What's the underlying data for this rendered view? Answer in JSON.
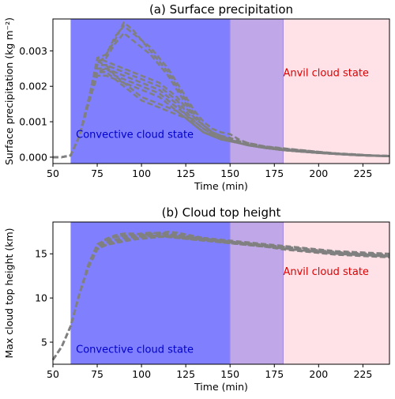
{
  "chart_data": [
    {
      "type": "line",
      "title": "(a) Surface precipitation",
      "xlabel": "Time (min)",
      "ylabel": "Surface precipitation (kg m⁻²)",
      "xlim": [
        50,
        240
      ],
      "ylim": [
        -0.00018,
        0.0039
      ],
      "xticks": [
        50,
        75,
        100,
        125,
        150,
        175,
        200,
        225
      ],
      "xtick_labels": [
        "50",
        "75",
        "100",
        "125",
        "150",
        "175",
        "200",
        "225"
      ],
      "yticks": [
        0,
        0.001,
        0.002,
        0.003
      ],
      "ytick_labels": [
        "0.000",
        "0.001",
        "0.002",
        "0.003"
      ],
      "grid": false,
      "line_color": "#808080",
      "line_style": "dashed",
      "regions": [
        {
          "x": [
            60,
            150
          ],
          "color": "#8080ff"
        },
        {
          "x": [
            150,
            180
          ],
          "color": "#c0a8e8"
        },
        {
          "x": [
            180,
            240
          ],
          "color": "#ffe2e8"
        }
      ],
      "annotations": [
        {
          "text": "Convective cloud state",
          "x": 63,
          "y": 0.00055,
          "color": "#0000cc"
        },
        {
          "text": "Anvil cloud state",
          "x": 180,
          "y": 0.00228,
          "color": "#dd0000"
        }
      ],
      "x": [
        50,
        55,
        60,
        65,
        70,
        75,
        80,
        85,
        90,
        95,
        100,
        105,
        110,
        115,
        120,
        125,
        130,
        135,
        140,
        145,
        150,
        155,
        160,
        165,
        170,
        175,
        180,
        190,
        200,
        210,
        220,
        230,
        240
      ],
      "series": [
        {
          "values": [
            0,
            0,
            5e-05,
            0.0006,
            0.0016,
            0.0028,
            0.0029,
            0.0034,
            0.0037,
            0.0035,
            0.0033,
            0.0031,
            0.0028,
            0.0025,
            0.0021,
            0.0017,
            0.0013,
            0.001,
            0.0008,
            0.0007,
            0.00065,
            0.0005,
            0.0004,
            0.00035,
            0.0003,
            0.00028,
            0.00025,
            0.0002,
            0.00015,
            0.0001,
            8e-05,
            5e-05,
            4e-05
          ]
        },
        {
          "values": [
            0,
            0,
            5e-05,
            0.0006,
            0.0015,
            0.0026,
            0.0029,
            0.0033,
            0.0038,
            0.0036,
            0.0033,
            0.003,
            0.0027,
            0.0024,
            0.002,
            0.0016,
            0.0012,
            0.0009,
            0.0007,
            0.0006,
            0.0005,
            0.0004,
            0.00035,
            0.0003,
            0.00028,
            0.00025,
            0.00022,
            0.00018,
            0.00014,
            0.0001,
            7e-05,
            5e-05,
            3e-05
          ]
        },
        {
          "values": [
            0,
            0,
            5e-05,
            0.0006,
            0.0016,
            0.0027,
            0.0028,
            0.0032,
            0.0035,
            0.0033,
            0.0031,
            0.0029,
            0.0026,
            0.0023,
            0.0019,
            0.0015,
            0.0011,
            0.0009,
            0.0007,
            0.0006,
            0.00055,
            0.00045,
            0.0004,
            0.00035,
            0.0003,
            0.00027,
            0.00024,
            0.0002,
            0.00015,
            0.00011,
            8e-05,
            5e-05,
            3e-05
          ]
        },
        {
          "values": [
            0,
            0,
            5e-05,
            0.0006,
            0.0015,
            0.0028,
            0.0027,
            0.0026,
            0.0025,
            0.0024,
            0.0023,
            0.0022,
            0.0021,
            0.0019,
            0.0017,
            0.0014,
            0.0011,
            0.0009,
            0.0007,
            0.0006,
            0.0005,
            0.0004,
            0.00035,
            0.0003,
            0.00027,
            0.00024,
            0.00022,
            0.00018,
            0.00014,
            0.0001,
            7e-05,
            5e-05,
            3e-05
          ]
        },
        {
          "values": [
            0,
            0,
            5e-05,
            0.0006,
            0.0016,
            0.0026,
            0.0026,
            0.0025,
            0.0024,
            0.0023,
            0.0022,
            0.0021,
            0.002,
            0.0018,
            0.0016,
            0.0013,
            0.001,
            0.0008,
            0.00065,
            0.00055,
            0.0005,
            0.00042,
            0.00036,
            0.0003,
            0.00026,
            0.00023,
            0.0002,
            0.00016,
            0.00012,
            9e-05,
            6e-05,
            4e-05,
            3e-05
          ]
        },
        {
          "values": [
            0,
            0,
            5e-05,
            0.0006,
            0.0015,
            0.0025,
            0.0025,
            0.0024,
            0.0023,
            0.0022,
            0.0021,
            0.002,
            0.0019,
            0.0017,
            0.0015,
            0.0012,
            0.001,
            0.0008,
            0.00065,
            0.00055,
            0.00048,
            0.0004,
            0.00034,
            0.0003,
            0.00026,
            0.00023,
            0.0002,
            0.00016,
            0.00012,
            9e-05,
            6e-05,
            4e-05,
            3e-05
          ]
        },
        {
          "values": [
            0,
            0,
            5e-05,
            0.0006,
            0.0016,
            0.0024,
            0.0025,
            0.0023,
            0.0022,
            0.0021,
            0.002,
            0.0019,
            0.0018,
            0.0016,
            0.0014,
            0.0012,
            0.0009,
            0.0007,
            0.0006,
            0.0005,
            0.00045,
            0.0004,
            0.00034,
            0.0003,
            0.00026,
            0.00023,
            0.0002,
            0.00016,
            0.00012,
            9e-05,
            6e-05,
            4e-05,
            3e-05
          ]
        },
        {
          "values": [
            0,
            0,
            5e-05,
            0.0006,
            0.0015,
            0.0023,
            0.0023,
            0.0022,
            0.0021,
            0.002,
            0.0019,
            0.0018,
            0.0017,
            0.0015,
            0.0013,
            0.0011,
            0.0009,
            0.0007,
            0.0006,
            0.0005,
            0.00045,
            0.0004,
            0.00034,
            0.0003,
            0.00026,
            0.00023,
            0.0002,
            0.00016,
            0.00012,
            9e-05,
            6e-05,
            4e-05,
            3e-05
          ]
        },
        {
          "values": [
            0,
            0,
            5e-05,
            0.0006,
            0.0016,
            0.0027,
            0.0026,
            0.0023,
            0.0021,
            0.0019,
            0.0017,
            0.0016,
            0.0015,
            0.0014,
            0.0013,
            0.0011,
            0.0009,
            0.0007,
            0.0006,
            0.0005,
            0.00045,
            0.0004,
            0.00034,
            0.0003,
            0.00026,
            0.00023,
            0.0002,
            0.00016,
            0.00012,
            9e-05,
            6e-05,
            4e-05,
            3e-05
          ]
        },
        {
          "values": [
            0,
            0,
            5e-05,
            0.0006,
            0.0015,
            0.0024,
            0.0024,
            0.0022,
            0.002,
            0.0018,
            0.0016,
            0.0015,
            0.0014,
            0.0013,
            0.0012,
            0.0011,
            0.0009,
            0.0007,
            0.0006,
            0.0005,
            0.00045,
            0.0004,
            0.00034,
            0.0003,
            0.00026,
            0.00023,
            0.0002,
            0.00016,
            0.00012,
            9e-05,
            6e-05,
            4e-05,
            3e-05
          ]
        }
      ]
    },
    {
      "type": "line",
      "title": "(b) Cloud top height",
      "xlabel": "Time (min)",
      "ylabel": "Max cloud top height (km)",
      "xlim": [
        50,
        240
      ],
      "ylim": [
        2.5,
        18.6
      ],
      "xticks": [
        50,
        75,
        100,
        125,
        150,
        175,
        200,
        225
      ],
      "xtick_labels": [
        "50",
        "75",
        "100",
        "125",
        "150",
        "175",
        "200",
        "225"
      ],
      "yticks": [
        5,
        10,
        15
      ],
      "ytick_labels": [
        "5",
        "10",
        "15"
      ],
      "grid": false,
      "line_color": "#808080",
      "line_style": "dashed",
      "regions": [
        {
          "x": [
            60,
            150
          ],
          "color": "#8080ff"
        },
        {
          "x": [
            150,
            180
          ],
          "color": "#c0a8e8"
        },
        {
          "x": [
            180,
            240
          ],
          "color": "#ffe2e8"
        }
      ],
      "annotations": [
        {
          "text": "Convective cloud state",
          "x": 63,
          "y": 3.8,
          "color": "#0000cc"
        },
        {
          "text": "Anvil cloud state",
          "x": 180,
          "y": 12.6,
          "color": "#dd0000"
        }
      ],
      "x": [
        50,
        55,
        60,
        65,
        70,
        75,
        80,
        85,
        90,
        95,
        100,
        105,
        110,
        115,
        120,
        130,
        140,
        150,
        160,
        170,
        180,
        190,
        200,
        210,
        220,
        230,
        240
      ],
      "series": [
        {
          "values": [
            3,
            4.5,
            6.8,
            10.5,
            13.5,
            15.8,
            16.5,
            16.9,
            17.0,
            17.1,
            17.2,
            17.3,
            17.4,
            17.3,
            17.2,
            16.9,
            16.6,
            16.3,
            16.1,
            15.9,
            15.7,
            15.5,
            15.3,
            15.2,
            15.1,
            15.0,
            14.9
          ]
        },
        {
          "values": [
            3,
            4.5,
            6.8,
            10.5,
            13.6,
            16.0,
            16.7,
            17.1,
            17.3,
            17.3,
            17.2,
            17.1,
            17.0,
            17.0,
            16.9,
            16.7,
            16.5,
            16.3,
            16.2,
            16.0,
            15.7,
            15.4,
            15.2,
            15.0,
            14.9,
            14.8,
            14.7
          ]
        },
        {
          "values": [
            3,
            4.5,
            6.8,
            10.5,
            13.4,
            15.9,
            16.3,
            16.6,
            16.8,
            16.9,
            17.0,
            17.0,
            17.1,
            17.1,
            17.0,
            16.8,
            16.6,
            16.4,
            16.2,
            16.0,
            15.8,
            15.6,
            15.4,
            15.2,
            15.0,
            14.9,
            14.8
          ]
        },
        {
          "values": [
            3,
            4.5,
            6.8,
            10.5,
            13.7,
            15.7,
            16.1,
            16.4,
            16.6,
            16.8,
            16.9,
            17.0,
            17.0,
            16.9,
            16.8,
            16.6,
            16.4,
            16.2,
            16.0,
            15.8,
            15.5,
            15.3,
            15.1,
            14.9,
            14.8,
            14.7,
            14.6
          ]
        },
        {
          "values": [
            3,
            4.5,
            6.8,
            10.5,
            13.5,
            15.6,
            16.0,
            16.3,
            16.5,
            16.7,
            16.8,
            16.9,
            16.9,
            17.0,
            16.9,
            16.8,
            16.6,
            16.4,
            16.1,
            15.9,
            15.6,
            15.4,
            15.2,
            15.0,
            14.9,
            14.8,
            14.7
          ]
        },
        {
          "values": [
            3,
            4.5,
            6.8,
            10.5,
            13.6,
            15.8,
            16.3,
            16.6,
            16.8,
            16.9,
            17.1,
            17.2,
            17.3,
            17.5,
            17.4,
            17.0,
            16.6,
            16.3,
            16.1,
            15.9,
            15.6,
            15.4,
            15.2,
            15.1,
            15.0,
            14.9,
            14.8
          ]
        },
        {
          "values": [
            3,
            4.5,
            6.8,
            10.5,
            13.4,
            15.5,
            16.0,
            16.2,
            16.4,
            16.6,
            16.7,
            16.8,
            16.9,
            16.9,
            16.8,
            16.6,
            16.4,
            16.2,
            16.0,
            15.8,
            15.6,
            15.4,
            15.3,
            15.1,
            15.0,
            14.9,
            14.8
          ]
        },
        {
          "values": [
            3,
            4.5,
            6.8,
            10.5,
            13.8,
            16.1,
            16.6,
            16.9,
            17.1,
            17.2,
            17.3,
            17.4,
            17.3,
            17.2,
            17.1,
            16.9,
            16.7,
            16.5,
            16.3,
            16.1,
            15.9,
            15.7,
            15.5,
            15.3,
            15.2,
            15.1,
            15.0
          ]
        }
      ]
    }
  ]
}
